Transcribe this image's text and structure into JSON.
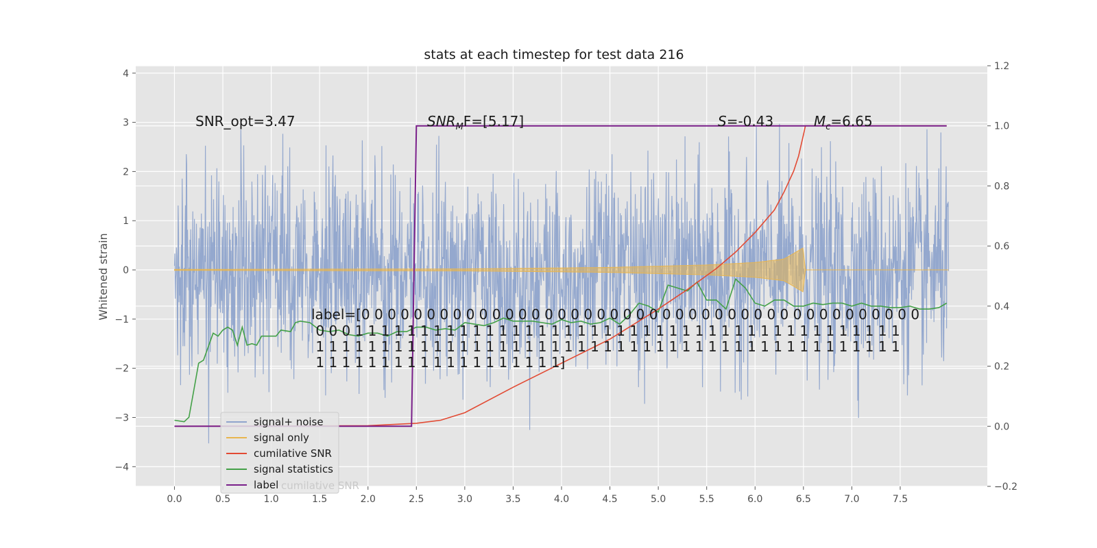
{
  "chart_data": {
    "type": "line",
    "title": "stats at each timestep for test data 216",
    "ylabel": "Whitened strain",
    "xlabel": "",
    "xlim": [
      -0.4,
      8.4
    ],
    "ylim_left": [
      -4.4,
      4.15
    ],
    "ylim_right": [
      -0.2,
      1.2
    ],
    "grid": true,
    "x_ticks": [
      "0.0",
      "0.5",
      "1.0",
      "1.5",
      "2.0",
      "2.5",
      "3.0",
      "3.5",
      "4.0",
      "4.5",
      "5.0",
      "5.5",
      "6.0",
      "6.5",
      "7.0",
      "7.5"
    ],
    "y_ticks_left": [
      "4",
      "3",
      "2",
      "1",
      "0",
      "−1",
      "−2",
      "−3",
      "−4"
    ],
    "y_ticks_right": [
      "1.2",
      "1.0",
      "0.8",
      "0.6",
      "0.4",
      "0.2",
      "0.0",
      "−0.2"
    ],
    "legend_position": "lower-left",
    "annotations": {
      "snr_opt": "SNR_opt=3.47",
      "snr_mf_sym": "SNR",
      "snr_mf_sub": "M",
      "snr_mf_rest": "F=[5.17]",
      "s_sym": "S",
      "s_rest": "=-0.43",
      "mc_sym": "M",
      "mc_sub": "c",
      "mc_rest": "=6.65",
      "label_lines": [
        "label=[0 0 0 0 0 0 0 0 0 0 0 0 0 0 0 0 0 0 0 0 0 0 0 0 0 0 0 0 0 0 0 0 0 0 0 0 0 0 0 0 0 0 0",
        " 0 0 0 1 1 1 1 1 1 1 1 1 1 1 1 1 1 1 1 1 1 1 1 1 1 1 1 1 1 1 1 1 1 1 1 1 1 1 1 1 1 1 1 1 1",
        " 1 1 1 1 1 1 1 1 1 1 1 1 1 1 1 1 1 1 1 1 1 1 1 1 1 1 1 1 1 1 1 1 1 1 1 1 1 1 1 1 1 1 1 1 1",
        " 1 1 1 1 1 1 1 1 1 1 1 1 1 1 1 1 1 1 1]"
      ]
    },
    "legend_ghost_text": "cumilative SNR",
    "series": [
      {
        "name": "signal+ noise",
        "color": "#8fa4cc",
        "axis": "left",
        "description": "dense whitened noise, amplitude about ±1.7 typical with spikes to ±3.7",
        "x_range": [
          0.0,
          8.0
        ]
      },
      {
        "name": "signal only",
        "color": "#e8b54e",
        "axis": "left",
        "description": "chirp growing in amplitude, ending at 6.52",
        "x": [
          0.0,
          3.0,
          4.5,
          5.5,
          6.0,
          6.3,
          6.5,
          6.52
        ],
        "envelope": [
          0.01,
          0.02,
          0.05,
          0.1,
          0.15,
          0.22,
          0.45,
          0.0
        ]
      },
      {
        "name": "cumilative SNR",
        "color": "#e24a33",
        "axis": "right",
        "x": [
          0.0,
          2.0,
          2.5,
          2.75,
          3.0,
          3.5,
          4.0,
          4.5,
          5.0,
          5.3,
          5.6,
          5.8,
          6.0,
          6.2,
          6.3,
          6.4,
          6.45,
          6.5,
          6.52,
          7.5,
          7.98
        ],
        "values": [
          0.0,
          0.002,
          0.01,
          0.02,
          0.045,
          0.13,
          0.21,
          0.29,
          0.39,
          0.455,
          0.525,
          0.58,
          0.645,
          0.72,
          0.78,
          0.85,
          0.9,
          0.97,
          1.0,
          1.0,
          1.0
        ]
      },
      {
        "name": "signal statistics",
        "color": "#43a047",
        "axis": "right",
        "x": [
          0.0,
          0.1,
          0.15,
          0.2,
          0.25,
          0.3,
          0.4,
          0.45,
          0.5,
          0.55,
          0.6,
          0.65,
          0.7,
          0.75,
          0.8,
          0.85,
          0.9,
          1.0,
          1.05,
          1.1,
          1.2,
          1.25,
          1.3,
          1.4,
          1.5,
          1.6,
          1.7,
          1.8,
          1.9,
          2.0,
          2.1,
          2.2,
          2.3,
          2.4,
          2.5,
          2.6,
          2.7,
          2.8,
          2.9,
          3.0,
          3.1,
          3.2,
          3.3,
          3.4,
          3.5,
          3.6,
          3.7,
          3.8,
          3.9,
          4.0,
          4.1,
          4.2,
          4.3,
          4.4,
          4.5,
          4.6,
          4.7,
          4.8,
          4.9,
          5.0,
          5.1,
          5.2,
          5.3,
          5.4,
          5.5,
          5.6,
          5.7,
          5.8,
          5.9,
          6.0,
          6.1,
          6.2,
          6.3,
          6.4,
          6.5,
          6.6,
          6.7,
          6.8,
          6.9,
          7.0,
          7.1,
          7.2,
          7.3,
          7.4,
          7.5,
          7.6,
          7.7,
          7.8,
          7.9,
          7.98
        ],
        "values": [
          0.02,
          0.015,
          0.03,
          0.12,
          0.21,
          0.22,
          0.31,
          0.3,
          0.32,
          0.33,
          0.32,
          0.27,
          0.33,
          0.27,
          0.275,
          0.27,
          0.3,
          0.3,
          0.3,
          0.32,
          0.315,
          0.345,
          0.35,
          0.345,
          0.32,
          0.315,
          0.32,
          0.305,
          0.3,
          0.31,
          0.31,
          0.3,
          0.315,
          0.315,
          0.33,
          0.33,
          0.32,
          0.325,
          0.32,
          0.345,
          0.34,
          0.335,
          0.345,
          0.36,
          0.35,
          0.35,
          0.35,
          0.345,
          0.34,
          0.355,
          0.345,
          0.35,
          0.34,
          0.345,
          0.36,
          0.34,
          0.37,
          0.41,
          0.4,
          0.38,
          0.47,
          0.46,
          0.45,
          0.48,
          0.42,
          0.42,
          0.39,
          0.49,
          0.46,
          0.41,
          0.4,
          0.42,
          0.42,
          0.4,
          0.4,
          0.41,
          0.405,
          0.41,
          0.41,
          0.4,
          0.41,
          0.4,
          0.4,
          0.395,
          0.395,
          0.4,
          0.39,
          0.39,
          0.395,
          0.41
        ]
      },
      {
        "name": "label",
        "color": "#7a1f8a",
        "axis": "right",
        "x": [
          0.0,
          2.45,
          2.5,
          7.98
        ],
        "values": [
          0.0,
          0.0,
          1.0,
          1.0
        ]
      }
    ]
  }
}
